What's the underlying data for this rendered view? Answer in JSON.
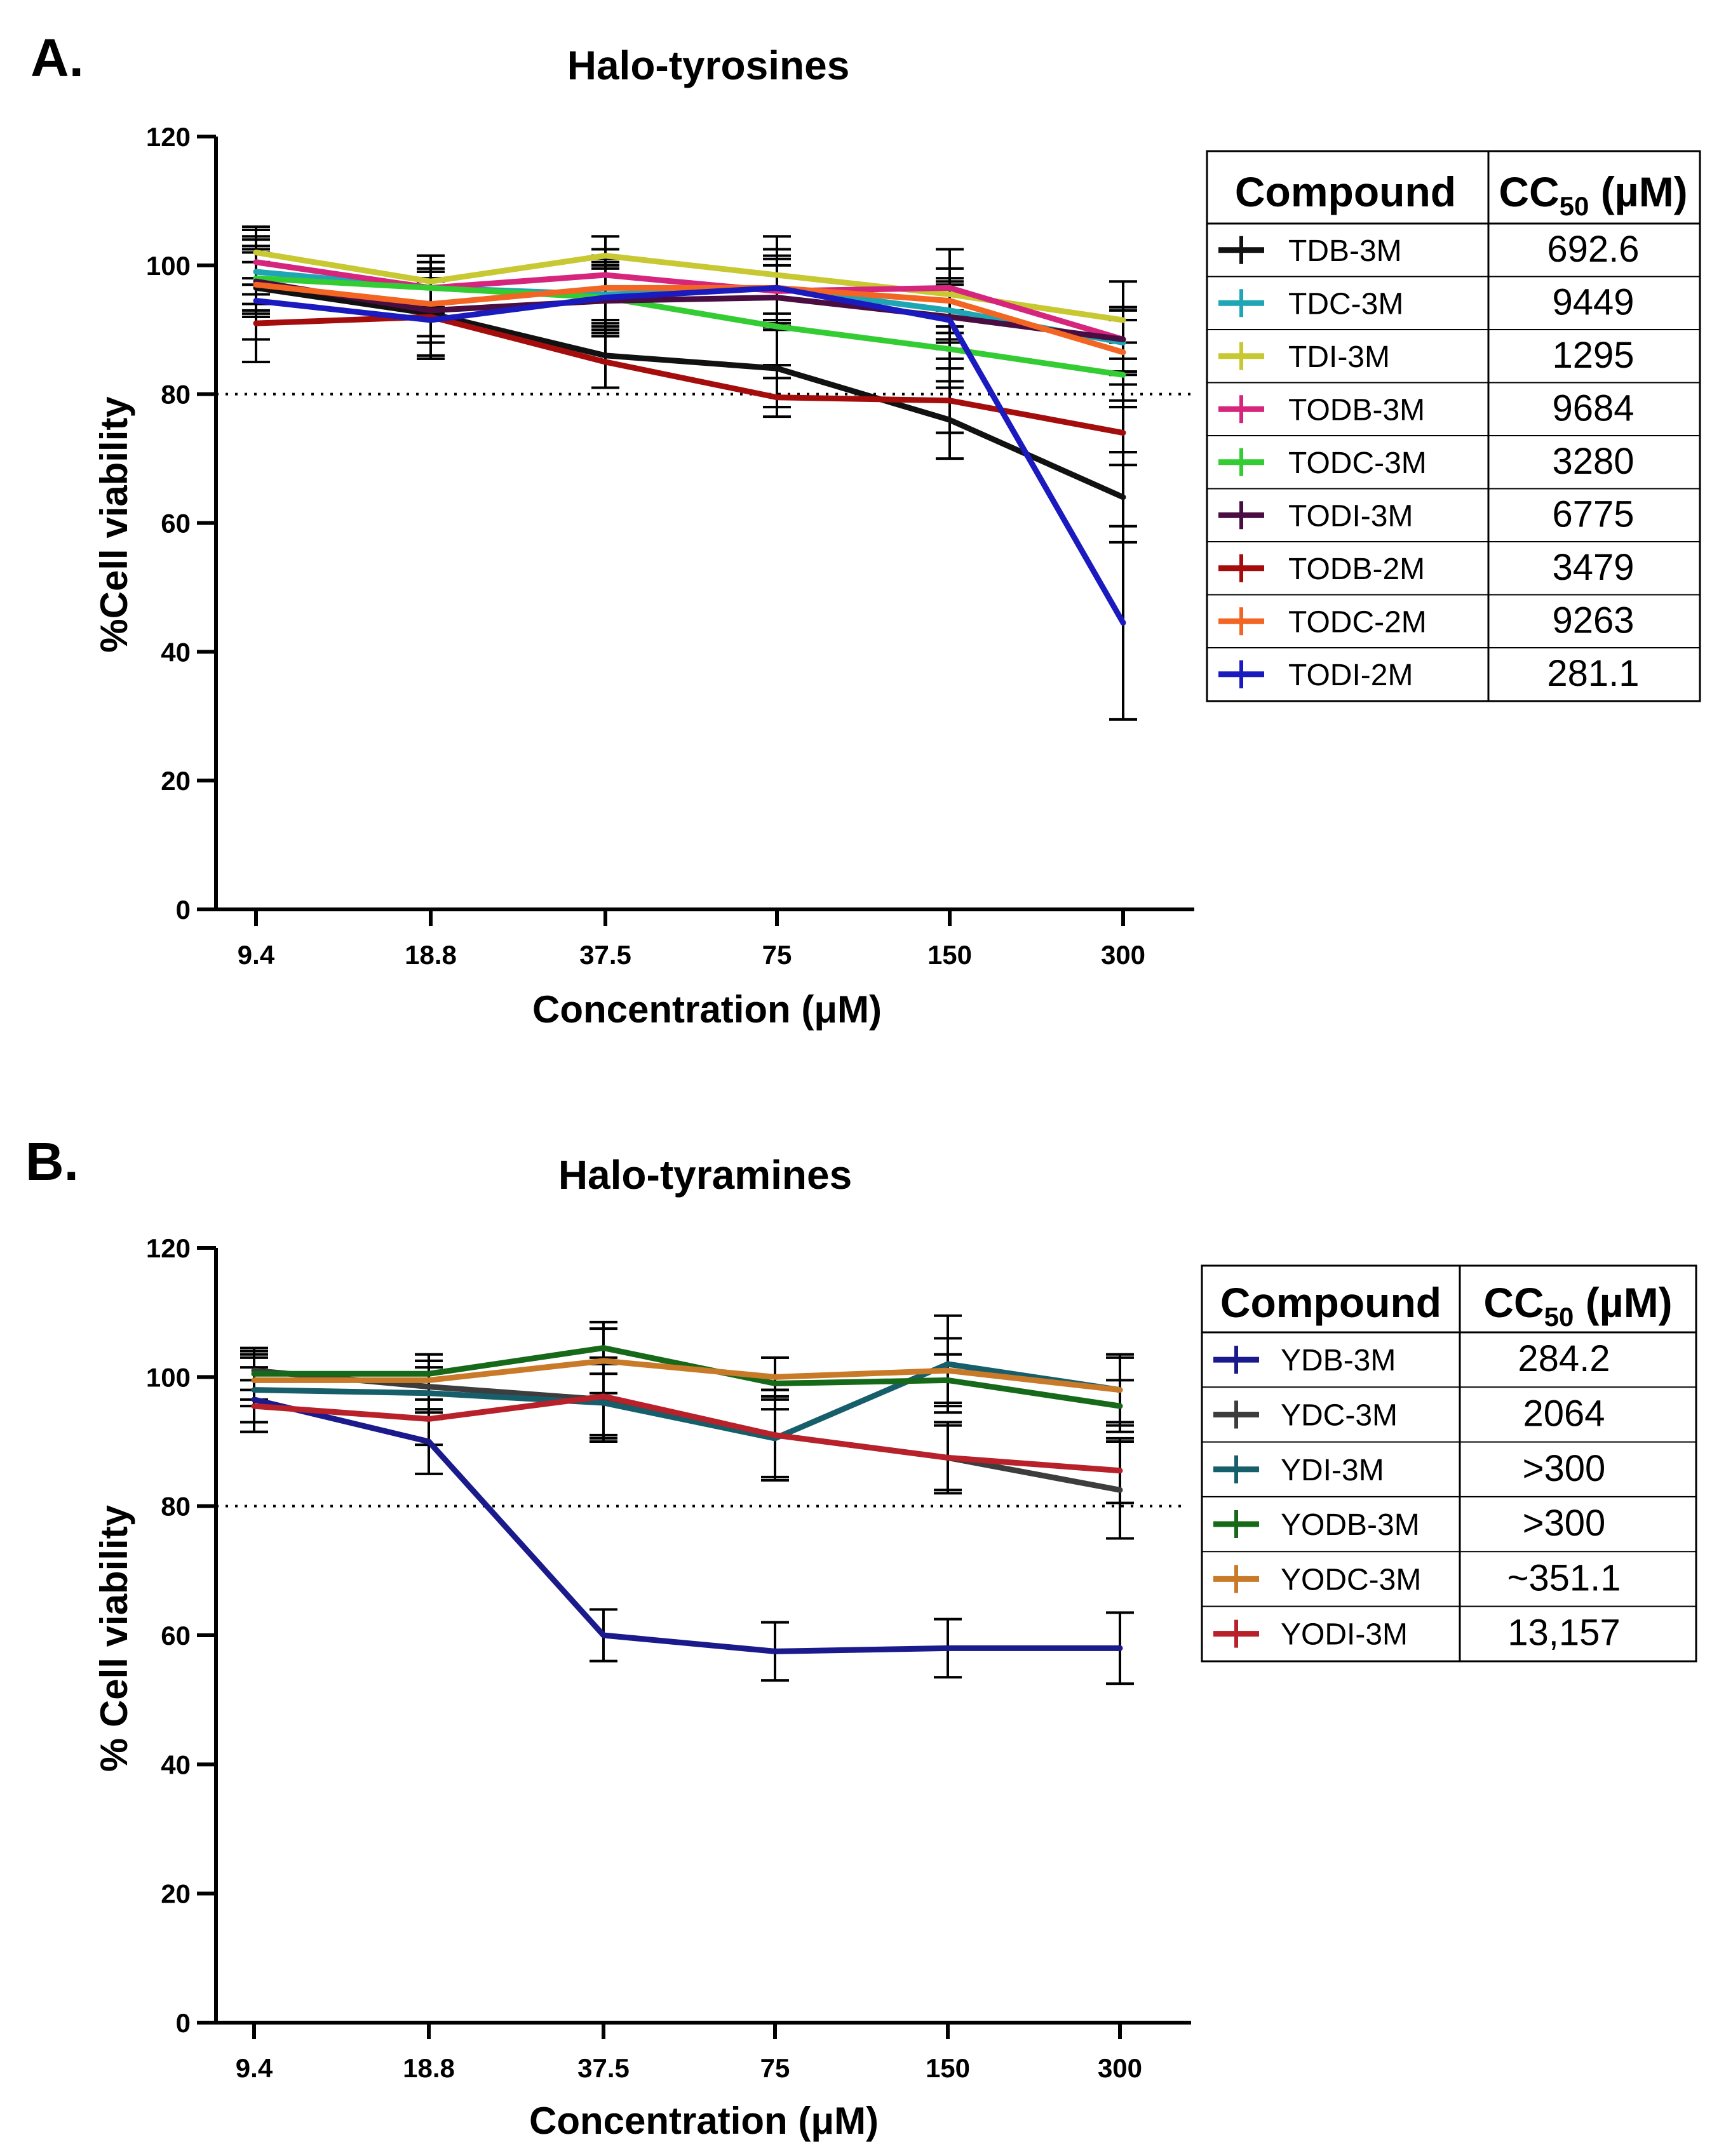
{
  "chart_data": [
    {
      "type": "line",
      "panel_label": "A.",
      "title": "Halo-tyrosines",
      "xlabel": "Concentration (μM)",
      "ylabel": "%Cell viability",
      "categories": [
        "9.4",
        "18.8",
        "37.5",
        "75",
        "150",
        "300"
      ],
      "ylim": [
        0,
        120
      ],
      "yticks": [
        "0",
        "20",
        "40",
        "60",
        "80",
        "100",
        "120"
      ],
      "threshold": 80,
      "legend": {
        "header_compound": "Compound",
        "header_cc": "CC",
        "header_cc_sub": "50",
        "header_cc_unit": " (µM)",
        "position": "right"
      },
      "series": [
        {
          "name": "TDB-3M",
          "cc50": "692.6",
          "color": "#111111",
          "values": [
            96.5,
            92.5,
            86.0,
            84.0,
            76.0,
            64.0
          ],
          "errors": [
            8,
            7,
            5,
            6,
            6,
            7
          ]
        },
        {
          "name": "TDC-3M",
          "cc50": "9449",
          "color": "#1fa6b5",
          "values": [
            99.0,
            96.5,
            95.5,
            96.5,
            93.0,
            88.0
          ],
          "errors": [
            5,
            5,
            5,
            6,
            5,
            5
          ]
        },
        {
          "name": "TDI-3M",
          "cc50": "1295",
          "color": "#c8c832",
          "values": [
            102.0,
            97.5,
            101.5,
            98.5,
            95.5,
            91.5
          ],
          "errors": [
            4,
            4,
            3,
            6,
            7,
            6
          ]
        },
        {
          "name": "TODB-3M",
          "cc50": "9684",
          "color": "#d6257d",
          "values": [
            100.5,
            96.5,
            98.5,
            96.0,
            96.5,
            88.5
          ],
          "errors": [
            5,
            4,
            4,
            5,
            6,
            5
          ]
        },
        {
          "name": "TODC-3M",
          "cc50": "3280",
          "color": "#33cc33",
          "values": [
            98.0,
            96.5,
            95.0,
            90.5,
            87.0,
            83.0
          ],
          "errors": [
            5,
            5,
            5,
            6,
            6,
            5
          ]
        },
        {
          "name": "TODI-3M",
          "cc50": "6775",
          "color": "#4a0d42",
          "values": [
            97.5,
            93.0,
            94.5,
            95.0,
            92.0,
            88.5
          ],
          "errors": [
            5,
            5,
            5,
            5,
            5,
            5
          ]
        },
        {
          "name": "TODB-2M",
          "cc50": "3479",
          "color": "#a50d0d",
          "values": [
            91.0,
            92.0,
            85.0,
            79.5,
            79.0,
            74.0
          ],
          "errors": [
            6,
            6,
            4,
            3,
            5,
            5
          ]
        },
        {
          "name": "TODC-2M",
          "cc50": "9263",
          "color": "#f26522",
          "values": [
            97.0,
            94.0,
            96.5,
            96.5,
            94.5,
            86.5
          ],
          "errors": [
            5,
            5,
            5,
            5,
            5,
            5
          ]
        },
        {
          "name": "TODI-2M",
          "cc50": "281.1",
          "color": "#1a1abf",
          "values": [
            94.5,
            91.5,
            95.0,
            96.5,
            91.5,
            44.5
          ],
          "errors": [
            6,
            6,
            6,
            6,
            6,
            15
          ]
        }
      ]
    },
    {
      "type": "line",
      "panel_label": "B.",
      "title": "Halo-tyramines",
      "xlabel": "Concentration (μM)",
      "ylabel": "% Cell viability",
      "categories": [
        "9.4",
        "18.8",
        "37.5",
        "75",
        "150",
        "300"
      ],
      "ylim": [
        0,
        120
      ],
      "yticks": [
        "0",
        "20",
        "40",
        "60",
        "80",
        "100",
        "120"
      ],
      "threshold": 80,
      "legend": {
        "header_compound": "Compound",
        "header_cc": "CC",
        "header_cc_sub": "50",
        "header_cc_unit": " (µM)",
        "position": "right"
      },
      "series": [
        {
          "name": "YDB-3M",
          "cc50": "284.2",
          "color": "#1a1a8c",
          "values": [
            96.5,
            90.0,
            60.0,
            57.5,
            58.0,
            58.0
          ],
          "errors": [
            5,
            5,
            4,
            4.5,
            4.5,
            5.5
          ]
        },
        {
          "name": "YDC-3M",
          "cc50": "2064",
          "color": "#3d3d3d",
          "values": [
            101.0,
            98.5,
            96.5,
            91.0,
            87.5,
            82.5
          ],
          "errors": [
            3,
            4,
            6,
            7,
            5.5,
            7.5
          ]
        },
        {
          "name": "YDI-3M",
          "cc50": ">300",
          "color": "#175e6b",
          "values": [
            98.0,
            97.5,
            96.0,
            90.5,
            102.0,
            98.0
          ],
          "errors": [
            5,
            4,
            6,
            6,
            7.5,
            5.5
          ]
        },
        {
          "name": "YODB-3M",
          "cc50": ">300",
          "color": "#17691a",
          "values": [
            100.5,
            100.5,
            104.5,
            99.0,
            99.5,
            95.5
          ],
          "errors": [
            4,
            3,
            4,
            4,
            4,
            4
          ]
        },
        {
          "name": "YODC-3M",
          "cc50": "~351.1",
          "color": "#c87a28",
          "values": [
            99.5,
            99.5,
            102.5,
            100.0,
            101.0,
            98.0
          ],
          "errors": [
            4,
            3,
            5,
            3,
            5,
            5
          ]
        },
        {
          "name": "YODI-3M",
          "cc50": "13,157",
          "color": "#b8202a",
          "values": [
            95.5,
            93.5,
            97.0,
            91.0,
            87.5,
            85.5
          ],
          "errors": [
            4,
            4,
            6,
            7,
            5,
            5
          ]
        }
      ]
    }
  ]
}
